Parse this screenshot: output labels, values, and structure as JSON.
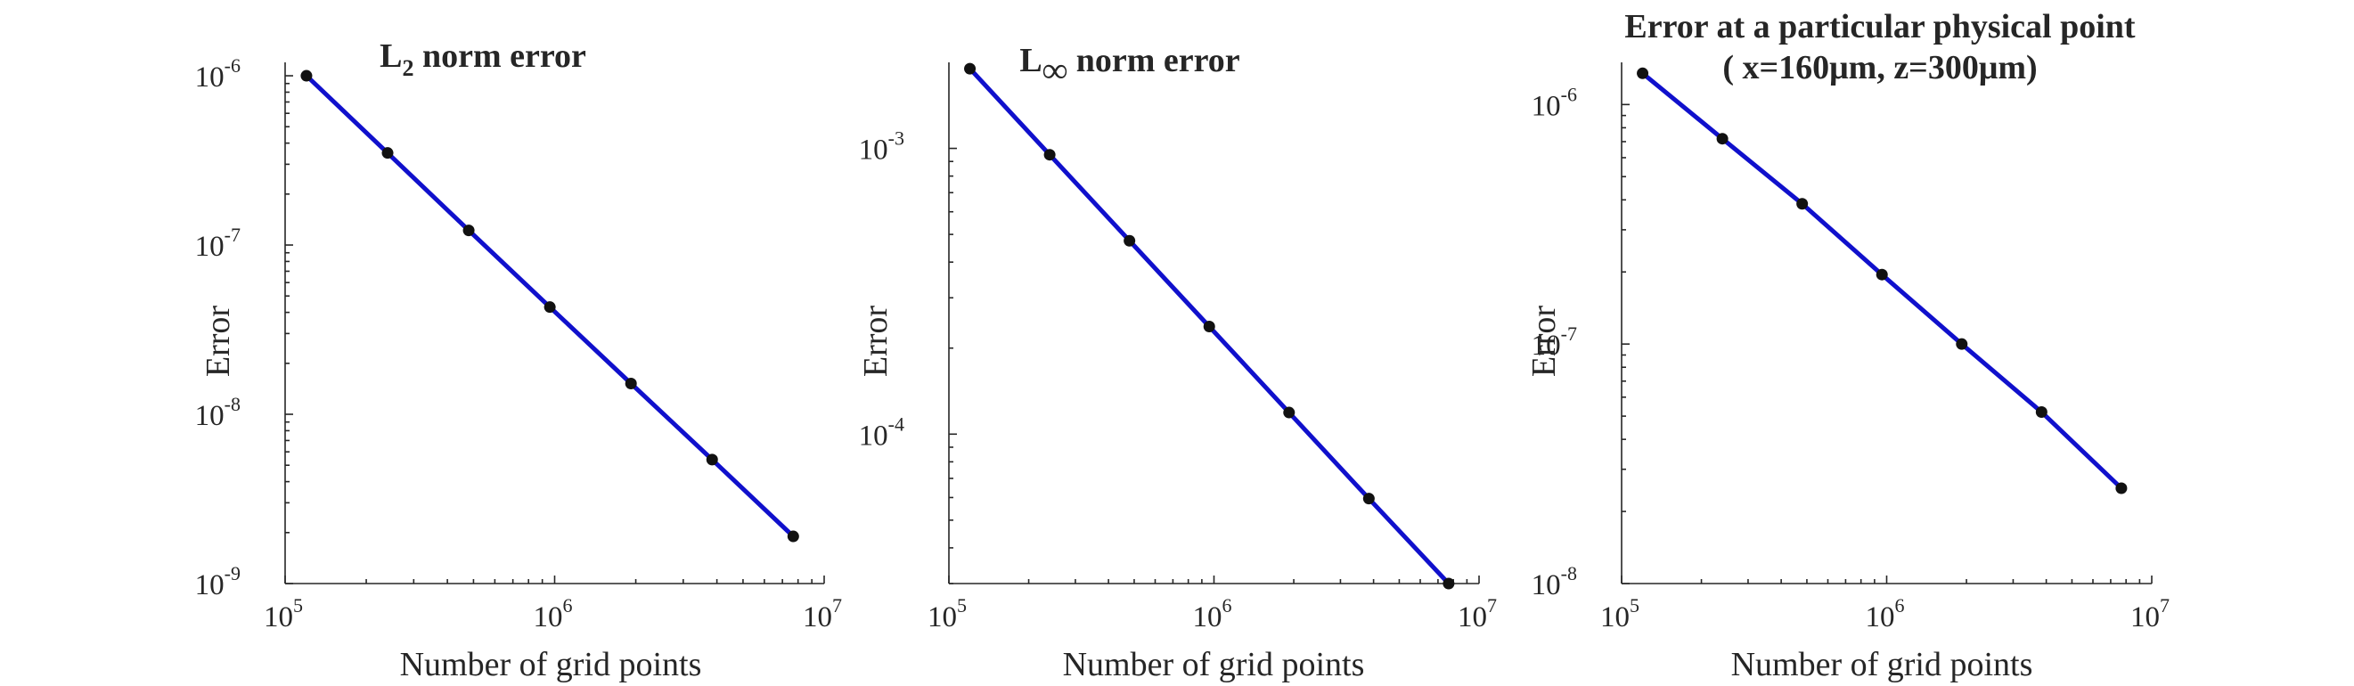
{
  "chart_data": [
    {
      "type": "line",
      "title_base": "L",
      "title_subscript": "2",
      "title_rest": " norm error",
      "xlabel": "Number of grid points",
      "ylabel": "Error",
      "xscale": "log",
      "yscale": "log",
      "xlim": [
        100000,
        10000000
      ],
      "ylim": [
        1e-09,
        1.2e-06
      ],
      "xticks": [
        {
          "base": "10",
          "exp": "5",
          "value": 100000
        },
        {
          "base": "10",
          "exp": "6",
          "value": 1000000
        },
        {
          "base": "10",
          "exp": "7",
          "value": 10000000
        }
      ],
      "yticks": [
        {
          "base": "10",
          "exp": "-9",
          "value": 1e-09
        },
        {
          "base": "10",
          "exp": "-8",
          "value": 1e-08
        },
        {
          "base": "10",
          "exp": "-7",
          "value": 1e-07
        },
        {
          "base": "10",
          "exp": "-6",
          "value": 1e-06
        }
      ],
      "grid": false,
      "series": [
        {
          "color": "#1010cc",
          "x": [
            120000,
            240000,
            480000,
            960000,
            1920000,
            3840000,
            7680000
          ],
          "y": [
            1e-06,
            3.5e-07,
            1.22e-07,
            4.3e-08,
            1.52e-08,
            5.4e-09,
            1.9e-09
          ]
        }
      ]
    },
    {
      "type": "line",
      "title_base": "L",
      "title_subscript": "∞",
      "title_rest": " norm error",
      "xlabel": "Number of grid points",
      "ylabel": "Error",
      "xscale": "log",
      "yscale": "log",
      "xlim": [
        100000,
        10000000
      ],
      "ylim": [
        3e-05,
        0.002
      ],
      "xticks": [
        {
          "base": "10",
          "exp": "5",
          "value": 100000
        },
        {
          "base": "10",
          "exp": "6",
          "value": 1000000
        },
        {
          "base": "10",
          "exp": "7",
          "value": 10000000
        }
      ],
      "yticks": [
        {
          "base": "10",
          "exp": "-4",
          "value": 0.0001
        },
        {
          "base": "10",
          "exp": "-3",
          "value": 0.001
        }
      ],
      "grid": false,
      "series": [
        {
          "color": "#1010cc",
          "x": [
            120000,
            240000,
            480000,
            960000,
            1920000,
            3840000,
            7680000
          ],
          "y": [
            0.0019,
            0.00095,
            0.000475,
            0.000238,
            0.000119,
            5.95e-05,
            3e-05
          ]
        }
      ]
    },
    {
      "type": "line",
      "title_line1": "Error at a particular physical point",
      "title_line2": "( x=160μm, z=300μm)",
      "xlabel": "Number of grid points",
      "ylabel": "Error",
      "xscale": "log",
      "yscale": "log",
      "xlim": [
        100000,
        10000000
      ],
      "ylim": [
        1e-08,
        1.5e-06
      ],
      "xticks": [
        {
          "base": "10",
          "exp": "5",
          "value": 100000
        },
        {
          "base": "10",
          "exp": "6",
          "value": 1000000
        },
        {
          "base": "10",
          "exp": "7",
          "value": 10000000
        }
      ],
      "yticks": [
        {
          "base": "10",
          "exp": "-8",
          "value": 1e-08
        },
        {
          "base": "10",
          "exp": "-7",
          "value": 1e-07
        },
        {
          "base": "10",
          "exp": "-6",
          "value": 1e-06
        }
      ],
      "grid": false,
      "series": [
        {
          "color": "#1010cc",
          "x": [
            120000,
            240000,
            480000,
            960000,
            1920000,
            3840000,
            7680000
          ],
          "y": [
            1.35e-06,
            7.2e-07,
            3.85e-07,
            1.95e-07,
            1e-07,
            5.2e-08,
            2.5e-08
          ]
        }
      ]
    }
  ]
}
